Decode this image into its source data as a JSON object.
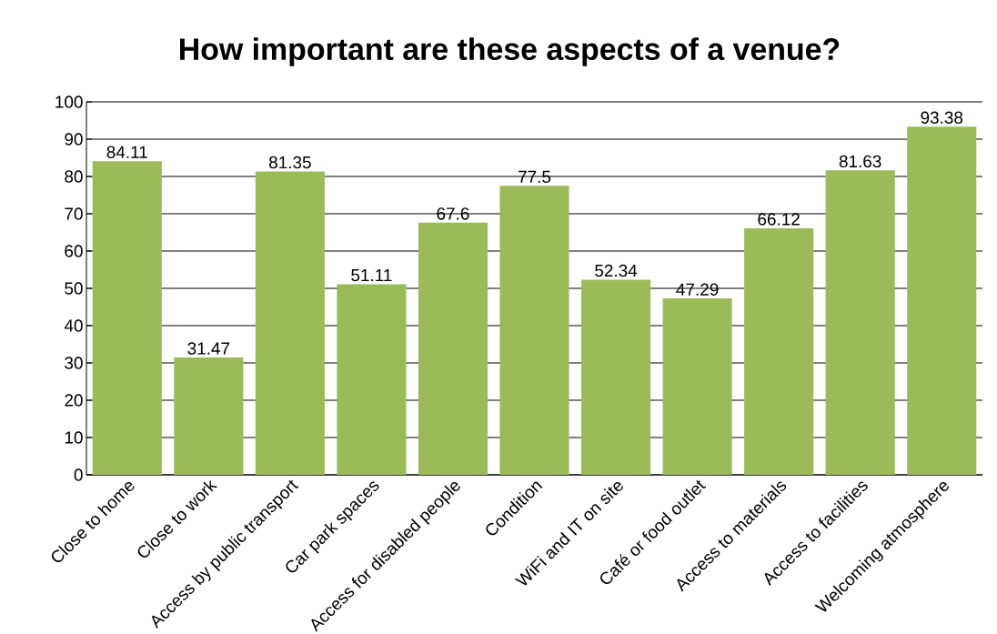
{
  "chart_data": {
    "type": "bar",
    "title": "How important are these aspects of a venue?",
    "categories": [
      "Close to home",
      "Close to work",
      "Access by public transport",
      "Car park spaces",
      "Access for disabled people",
      "Condition",
      "WiFi and IT on site",
      "Café or food outlet",
      "Access to materials",
      "Access to facilities",
      "Welcoming atmosphere"
    ],
    "values": [
      84.11,
      31.47,
      81.35,
      51.11,
      67.6,
      77.5,
      52.34,
      47.29,
      66.12,
      81.63,
      93.38
    ],
    "color": "#9bbb59",
    "ylim": [
      0,
      100
    ],
    "yticks": [
      0,
      10,
      20,
      30,
      40,
      50,
      60,
      70,
      80,
      90,
      100
    ],
    "grid": "y",
    "data_labels": true
  }
}
